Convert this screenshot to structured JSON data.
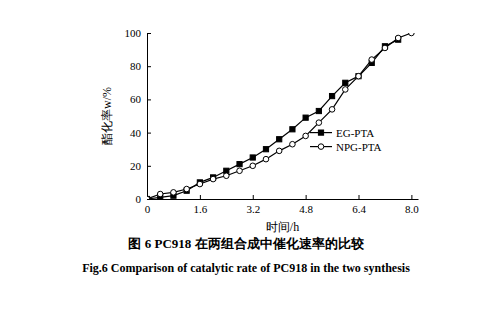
{
  "chart_data": {
    "type": "line",
    "title": "图 6 PC918 在两组合成中催化速率的比较",
    "subtitle": "Fig.6 Comparison of catalytic rate of PC918 in the two synthesis",
    "x_label": "时间/h",
    "y_label": "酯化率w/%",
    "x": [
      0,
      0.4,
      0.8,
      1.2,
      1.6,
      2.0,
      2.4,
      2.8,
      3.2,
      3.6,
      4.0,
      4.4,
      4.8,
      5.2,
      5.6,
      6.0,
      6.4,
      6.8,
      7.2,
      7.6,
      8.0
    ],
    "series": [
      {
        "name": "EG-PTA",
        "color": "#000000",
        "marker": "square",
        "line_style": "solid",
        "values": [
          0,
          1,
          2,
          5,
          10,
          13,
          17,
          21,
          25,
          30,
          36,
          42,
          49,
          53,
          62,
          70,
          74,
          82,
          92,
          96,
          null
        ]
      },
      {
        "name": "NPG-PTA",
        "color": "#000000",
        "marker": "open-circle",
        "line_style": "solid",
        "values": [
          0,
          3,
          4,
          6,
          9,
          12,
          14,
          17,
          20,
          24,
          29,
          33,
          38,
          46,
          54,
          66,
          74,
          84,
          91,
          97,
          100
        ]
      }
    ],
    "xlim": [
      0,
      8.2
    ],
    "xticks": [
      0,
      1.6,
      3.2,
      4.8,
      6.4,
      {
        "value": 8,
        "label": "8.0"
      }
    ],
    "ylim": [
      0,
      100
    ],
    "yticks": [
      0,
      20,
      40,
      60,
      80,
      100
    ],
    "legend": "right",
    "grid": false
  }
}
